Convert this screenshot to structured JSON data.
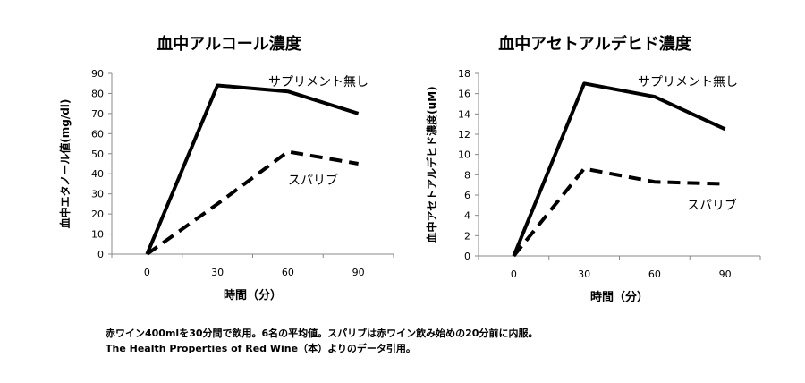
{
  "chart_data": [
    {
      "type": "line",
      "title": "血中アルコール濃度",
      "xlabel": "時間（分）",
      "ylabel": "血中エタノール値(mg/dl)",
      "x": [
        0,
        30,
        60,
        90
      ],
      "xlim": [
        -15,
        105
      ],
      "ylim": [
        0,
        90
      ],
      "yticks": [
        0,
        10,
        20,
        30,
        40,
        50,
        60,
        70,
        80,
        90
      ],
      "grid": false,
      "series": [
        {
          "name": "サプリメント無し",
          "style": "solid",
          "color": "#000000",
          "values": [
            0,
            84,
            81,
            70
          ]
        },
        {
          "name": "スパリブ",
          "style": "dashed",
          "color": "#000000",
          "values": [
            0,
            25,
            51,
            45
          ]
        }
      ]
    },
    {
      "type": "line",
      "title": "血中アセトアルデヒド濃度",
      "xlabel": "時間（分）",
      "ylabel": "血中アセトアルデヒド濃度(uM)",
      "x": [
        0,
        30,
        60,
        90
      ],
      "xlim": [
        -15,
        105
      ],
      "ylim": [
        0,
        18
      ],
      "yticks": [
        0,
        2,
        4,
        6,
        8,
        10,
        12,
        14,
        16,
        18
      ],
      "grid": false,
      "series": [
        {
          "name": "サプリメント無し",
          "style": "solid",
          "color": "#000000",
          "values": [
            0,
            17,
            15.7,
            12.5
          ]
        },
        {
          "name": "スパリブ",
          "style": "dashed",
          "color": "#000000",
          "values": [
            0,
            8.6,
            7.3,
            7.1
          ]
        }
      ]
    }
  ],
  "caption": {
    "line1": "赤ワイン400mlを30分間で飲用。6名の平均値。スパリブは赤ワイン飲み始めの20分前に内服。",
    "line2": "The Health Properties of Red Wine（本）よりのデータ引用。"
  }
}
